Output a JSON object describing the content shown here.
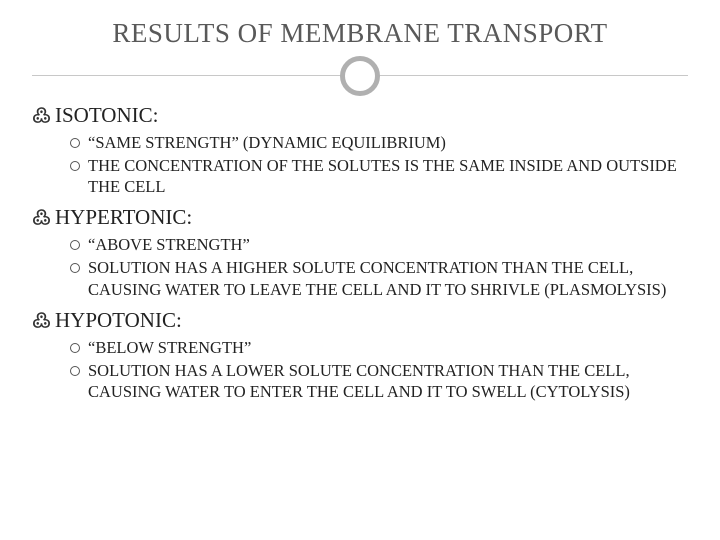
{
  "background_color": "#ffffff",
  "title": {
    "text": "RESULTS OF MEMBRANE TRANSPORT",
    "color": "#595959",
    "fontsize": 27
  },
  "ring": {
    "border_color": "#b0b0b0",
    "border_width": 5,
    "diameter": 40
  },
  "divider_color": "#c8c8c8",
  "bullet_marker": "swirl",
  "sub_bullet_marker": "hollow-circle",
  "text_color": "#222222",
  "body_fontsize": 16.5,
  "section_title_fontsize": 21,
  "sections": [
    {
      "heading": "ISOTONIC:",
      "items": [
        "“SAME STRENGTH” (DYNAMIC EQUILIBRIUM)",
        "THE CONCENTRATION OF THE SOLUTES IS THE SAME INSIDE AND OUTSIDE THE CELL"
      ]
    },
    {
      "heading": "HYPERTONIC:",
      "items": [
        "“ABOVE STRENGTH”",
        "SOLUTION HAS A HIGHER SOLUTE CONCENTRATION THAN THE CELL, CAUSING WATER TO LEAVE THE CELL AND IT TO SHRIVLE (PLASMOLYSIS)"
      ]
    },
    {
      "heading": "HYPOTONIC:",
      "items": [
        "“BELOW STRENGTH”",
        "SOLUTION HAS A LOWER SOLUTE CONCENTRATION THAN THE CELL, CAUSING WATER TO ENTER THE CELL AND IT TO SWELL (CYTOLYSIS)"
      ]
    }
  ]
}
